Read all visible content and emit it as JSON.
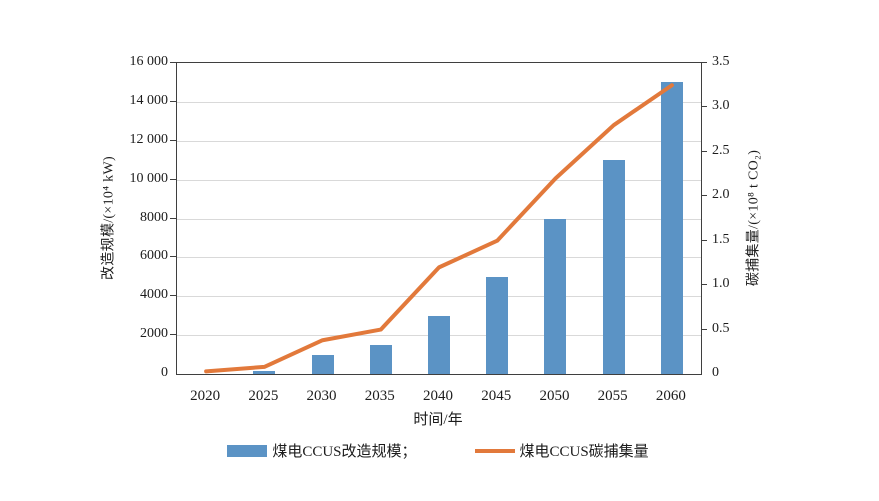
{
  "chart_data": {
    "type": "bar",
    "title": "",
    "categories": [
      "2020",
      "2025",
      "2030",
      "2035",
      "2040",
      "2045",
      "2050",
      "2055",
      "2060"
    ],
    "series": [
      {
        "name": "煤电CCUS改造规模",
        "render": "bar",
        "axis": "left",
        "color": "#5b93c5",
        "values": [
          0,
          150,
          1000,
          1500,
          3000,
          5000,
          8000,
          11000,
          15000
        ]
      },
      {
        "name": "煤电CCUS碳捕集量",
        "render": "line",
        "axis": "right",
        "color": "#e2793b",
        "values": [
          0.03,
          0.08,
          0.38,
          0.5,
          1.2,
          1.5,
          2.2,
          2.8,
          3.25
        ]
      }
    ],
    "xlabel": "时间/年",
    "ylabel_left": "改造规模/(×10⁴ kW)",
    "ylabel_right": "碳捕集量/(×10⁸ t CO₂)",
    "left_axis": {
      "min": 0,
      "max": 16000,
      "step": 2000,
      "tick_labels": [
        "0",
        "2000",
        "4000",
        "6000",
        "8000",
        "10 000",
        "12 000",
        "14 000",
        "16 000"
      ]
    },
    "right_axis": {
      "min": 0,
      "max": 3.5,
      "step": 0.5,
      "tick_labels": [
        "0",
        "0.5",
        "1.0",
        "1.5",
        "2.0",
        "2.5",
        "3.0",
        "3.5"
      ]
    },
    "grid": "horizontal",
    "legend_position": "bottom",
    "legend_labels": [
      "煤电CCUS改造规模；",
      "煤电CCUS碳捕集量"
    ]
  },
  "colors": {
    "bar": "#5b93c5",
    "line": "#e2793b",
    "gridline": "#d9d9d9",
    "axis": "#3f3f3f",
    "text": "#1c1c1c",
    "background": "#ffffff"
  }
}
